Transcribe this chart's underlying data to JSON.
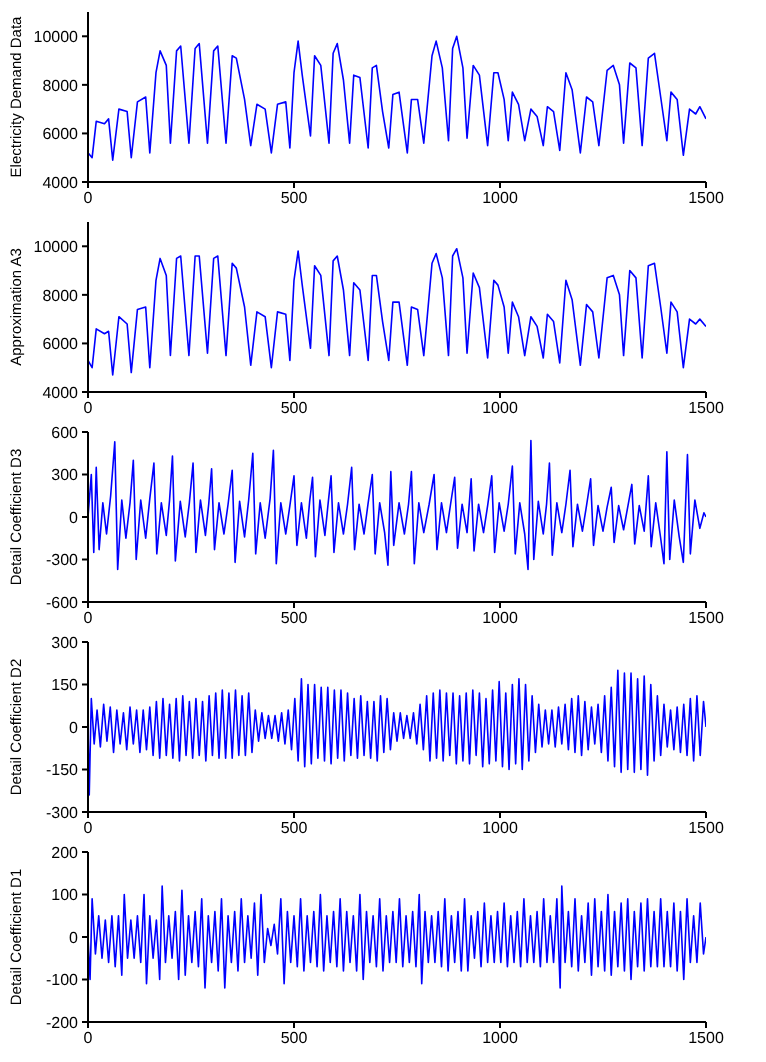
{
  "chart_data": [
    {
      "type": "line",
      "ylabel": "Electricity Demand Data",
      "color": "#0000ff",
      "xlim": [
        0,
        1500
      ],
      "xticks": [
        0,
        500,
        1000,
        1500
      ],
      "ylim": [
        4000,
        11000
      ],
      "yticks": [
        4000,
        6000,
        8000,
        10000
      ],
      "x": [
        0,
        10,
        20,
        40,
        50,
        60,
        75,
        95,
        105,
        120,
        140,
        150,
        165,
        175,
        190,
        200,
        215,
        225,
        245,
        260,
        270,
        290,
        305,
        315,
        335,
        350,
        360,
        380,
        395,
        410,
        430,
        445,
        460,
        480,
        490,
        500,
        510,
        520,
        540,
        550,
        565,
        585,
        595,
        605,
        620,
        635,
        645,
        660,
        680,
        690,
        700,
        715,
        730,
        740,
        755,
        775,
        785,
        800,
        815,
        835,
        845,
        860,
        875,
        885,
        895,
        910,
        920,
        935,
        950,
        970,
        985,
        995,
        1010,
        1020,
        1030,
        1045,
        1060,
        1075,
        1090,
        1105,
        1115,
        1130,
        1145,
        1160,
        1175,
        1195,
        1210,
        1225,
        1240,
        1260,
        1275,
        1290,
        1300,
        1315,
        1330,
        1345,
        1360,
        1375,
        1390,
        1405,
        1415,
        1430,
        1445,
        1460,
        1475,
        1485,
        1500
      ],
      "values": [
        5200,
        5000,
        6500,
        6400,
        6600,
        4900,
        7000,
        6900,
        5000,
        7300,
        7500,
        5200,
        8500,
        9400,
        8800,
        5600,
        9400,
        9600,
        5600,
        9500,
        9700,
        5600,
        9400,
        9600,
        5600,
        9200,
        9100,
        7400,
        5500,
        7200,
        7000,
        5200,
        7200,
        7300,
        5400,
        8500,
        9800,
        8400,
        5900,
        9200,
        8800,
        5600,
        9300,
        9700,
        8200,
        5600,
        8400,
        8300,
        5400,
        8700,
        8800,
        6900,
        5400,
        7600,
        7700,
        5200,
        7400,
        7400,
        5600,
        9200,
        9800,
        8700,
        5700,
        9500,
        10000,
        8700,
        5800,
        8800,
        8400,
        5500,
        8500,
        8500,
        7400,
        5700,
        7700,
        7200,
        5700,
        7000,
        6700,
        5500,
        7100,
        6900,
        5300,
        8500,
        7800,
        5200,
        7500,
        7300,
        5500,
        8600,
        8800,
        8000,
        5600,
        8900,
        8700,
        5500,
        9100,
        9300,
        7500,
        5700,
        7700,
        7400,
        5100,
        7000,
        6800,
        7100,
        6600
      ]
    },
    {
      "type": "line",
      "ylabel": "Approximation A3",
      "color": "#0000ff",
      "xlim": [
        0,
        1500
      ],
      "xticks": [
        0,
        500,
        1000,
        1500
      ],
      "ylim": [
        4000,
        11000
      ],
      "yticks": [
        4000,
        6000,
        8000,
        10000
      ],
      "x": [
        0,
        10,
        20,
        40,
        50,
        60,
        75,
        95,
        105,
        120,
        140,
        150,
        165,
        175,
        190,
        200,
        215,
        225,
        245,
        260,
        270,
        290,
        305,
        315,
        335,
        350,
        360,
        380,
        395,
        410,
        430,
        445,
        460,
        480,
        490,
        500,
        510,
        520,
        540,
        550,
        565,
        585,
        595,
        605,
        620,
        635,
        645,
        660,
        680,
        690,
        700,
        715,
        730,
        740,
        755,
        775,
        785,
        800,
        815,
        835,
        845,
        860,
        875,
        885,
        895,
        910,
        920,
        935,
        950,
        970,
        985,
        995,
        1010,
        1020,
        1030,
        1045,
        1060,
        1075,
        1090,
        1105,
        1115,
        1130,
        1145,
        1160,
        1175,
        1195,
        1210,
        1225,
        1240,
        1260,
        1275,
        1290,
        1300,
        1315,
        1330,
        1345,
        1360,
        1375,
        1390,
        1405,
        1415,
        1430,
        1445,
        1460,
        1475,
        1485,
        1500
      ],
      "values": [
        5300,
        5000,
        6600,
        6400,
        6500,
        4700,
        7100,
        6800,
        4800,
        7400,
        7500,
        5000,
        8600,
        9500,
        8800,
        5500,
        9500,
        9600,
        5500,
        9600,
        9600,
        5600,
        9500,
        9600,
        5500,
        9300,
        9100,
        7500,
        5100,
        7300,
        7100,
        5000,
        7300,
        7200,
        5300,
        8600,
        9800,
        8400,
        5800,
        9200,
        8800,
        5500,
        9400,
        9600,
        8200,
        5500,
        8500,
        8200,
        5300,
        8800,
        8800,
        6900,
        5300,
        7700,
        7700,
        5100,
        7500,
        7400,
        5500,
        9300,
        9700,
        8700,
        5500,
        9600,
        9900,
        8700,
        5600,
        8900,
        8300,
        5400,
        8600,
        8400,
        7500,
        5600,
        7700,
        7100,
        5500,
        7100,
        6700,
        5400,
        7200,
        6900,
        5200,
        8600,
        7800,
        5100,
        7600,
        7300,
        5400,
        8700,
        8800,
        8000,
        5500,
        9000,
        8700,
        5400,
        9200,
        9300,
        7500,
        5600,
        7700,
        7300,
        5000,
        7000,
        6800,
        7000,
        6700
      ]
    },
    {
      "type": "line",
      "ylabel": "Detail Coefficient D3",
      "color": "#0000ff",
      "xlim": [
        0,
        1500
      ],
      "xticks": [
        0,
        500,
        1000,
        1500
      ],
      "ylim": [
        -600,
        600
      ],
      "yticks": [
        -600,
        -300,
        0,
        300,
        600
      ],
      "x": [
        0,
        8,
        14,
        20,
        27,
        36,
        45,
        55,
        65,
        72,
        82,
        92,
        102,
        110,
        117,
        128,
        140,
        150,
        160,
        167,
        178,
        190,
        198,
        205,
        212,
        224,
        236,
        246,
        255,
        262,
        273,
        285,
        293,
        300,
        307,
        318,
        330,
        340,
        350,
        357,
        368,
        380,
        390,
        400,
        407,
        418,
        430,
        442,
        450,
        457,
        468,
        480,
        490,
        500,
        507,
        518,
        530,
        538,
        545,
        552,
        563,
        575,
        583,
        590,
        597,
        608,
        620,
        630,
        640,
        647,
        658,
        670,
        680,
        690,
        697,
        708,
        720,
        728,
        735,
        742,
        755,
        768,
        778,
        785,
        792,
        803,
        815,
        828,
        840,
        847,
        858,
        870,
        880,
        890,
        897,
        908,
        920,
        930,
        937,
        948,
        960,
        970,
        980,
        987,
        998,
        1010,
        1020,
        1030,
        1037,
        1048,
        1060,
        1068,
        1075,
        1082,
        1093,
        1105,
        1113,
        1120,
        1127,
        1138,
        1150,
        1160,
        1170,
        1177,
        1188,
        1200,
        1210,
        1220,
        1227,
        1238,
        1250,
        1260,
        1270,
        1277,
        1288,
        1300,
        1310,
        1320,
        1327,
        1338,
        1350,
        1360,
        1367,
        1378,
        1390,
        1398,
        1405,
        1412,
        1423,
        1435,
        1445,
        1455,
        1462,
        1473,
        1485,
        1495,
        1500
      ],
      "values": [
        0,
        300,
        -250,
        350,
        -230,
        100,
        -120,
        150,
        530,
        -370,
        120,
        -150,
        100,
        400,
        -300,
        120,
        -150,
        130,
        380,
        -260,
        100,
        -130,
        120,
        430,
        -310,
        110,
        -140,
        100,
        380,
        -250,
        120,
        -130,
        90,
        340,
        -230,
        100,
        -120,
        90,
        330,
        -320,
        110,
        -140,
        120,
        450,
        -260,
        100,
        -150,
        130,
        470,
        -330,
        100,
        -120,
        80,
        290,
        -200,
        100,
        -150,
        110,
        280,
        -280,
        120,
        -130,
        100,
        290,
        -250,
        100,
        -120,
        90,
        350,
        -230,
        90,
        -120,
        100,
        300,
        -260,
        100,
        -110,
        -340,
        320,
        -200,
        100,
        -120,
        90,
        320,
        -330,
        100,
        -110,
        90,
        300,
        -230,
        100,
        -110,
        90,
        280,
        -220,
        90,
        -110,
        270,
        -240,
        90,
        -110,
        80,
        290,
        -250,
        100,
        -100,
        90,
        360,
        -260,
        100,
        -120,
        -370,
        540,
        -300,
        110,
        -120,
        90,
        380,
        -270,
        100,
        -110,
        90,
        330,
        -210,
        90,
        -100,
        80,
        270,
        -200,
        80,
        -100,
        70,
        210,
        -180,
        80,
        -90,
        70,
        230,
        -190,
        80,
        -100,
        290,
        -210,
        100,
        -150,
        -330,
        460,
        -300,
        120,
        -140,
        -320,
        440,
        -260,
        120,
        -80,
        30,
        0
      ]
    },
    {
      "type": "line",
      "ylabel": "Detail Coefficient D2",
      "color": "#0000ff",
      "xlim": [
        0,
        1500
      ],
      "xticks": [
        0,
        500,
        1000,
        1500
      ],
      "ylim": [
        -300,
        300
      ],
      "yticks": [
        -300,
        -150,
        0,
        150,
        300
      ],
      "x": [
        0,
        3,
        8,
        15,
        22,
        30,
        38,
        46,
        54,
        62,
        70,
        78,
        86,
        94,
        102,
        110,
        118,
        126,
        134,
        142,
        150,
        158,
        166,
        174,
        182,
        190,
        198,
        206,
        214,
        222,
        230,
        238,
        246,
        254,
        262,
        270,
        278,
        286,
        294,
        302,
        310,
        318,
        326,
        334,
        342,
        350,
        358,
        366,
        374,
        382,
        390,
        398,
        406,
        414,
        422,
        430,
        438,
        446,
        454,
        462,
        470,
        478,
        486,
        494,
        502,
        510,
        518,
        526,
        534,
        542,
        550,
        558,
        566,
        574,
        582,
        590,
        598,
        606,
        614,
        622,
        630,
        638,
        646,
        654,
        662,
        670,
        678,
        686,
        694,
        702,
        710,
        718,
        726,
        734,
        742,
        750,
        758,
        766,
        774,
        782,
        790,
        798,
        806,
        814,
        822,
        830,
        838,
        846,
        854,
        862,
        870,
        878,
        886,
        894,
        902,
        910,
        918,
        926,
        934,
        942,
        950,
        958,
        966,
        974,
        982,
        990,
        998,
        1006,
        1014,
        1022,
        1030,
        1038,
        1046,
        1054,
        1062,
        1070,
        1078,
        1086,
        1094,
        1102,
        1110,
        1118,
        1126,
        1134,
        1142,
        1150,
        1158,
        1166,
        1174,
        1182,
        1190,
        1198,
        1206,
        1214,
        1222,
        1230,
        1238,
        1246,
        1254,
        1262,
        1270,
        1278,
        1286,
        1294,
        1302,
        1310,
        1318,
        1326,
        1334,
        1342,
        1350,
        1358,
        1366,
        1374,
        1382,
        1390,
        1398,
        1406,
        1414,
        1422,
        1430,
        1438,
        1446,
        1454,
        1462,
        1470,
        1478,
        1486,
        1494,
        1500
      ],
      "values": [
        0,
        -240,
        100,
        -60,
        60,
        -70,
        80,
        -50,
        70,
        -90,
        60,
        -60,
        50,
        -80,
        70,
        -60,
        60,
        -90,
        60,
        -80,
        70,
        -100,
        90,
        -110,
        100,
        -100,
        80,
        -110,
        100,
        -120,
        110,
        -100,
        90,
        -110,
        100,
        -100,
        90,
        -120,
        110,
        -100,
        120,
        -110,
        130,
        -110,
        120,
        -110,
        130,
        -100,
        110,
        -100,
        120,
        -90,
        60,
        -50,
        50,
        -40,
        40,
        -40,
        40,
        -50,
        50,
        -60,
        60,
        -80,
        100,
        -120,
        170,
        -140,
        150,
        -130,
        150,
        -110,
        140,
        -120,
        140,
        -130,
        130,
        -110,
        130,
        -120,
        120,
        -100,
        100,
        -110,
        110,
        -100,
        90,
        -110,
        90,
        -120,
        110,
        -90,
        100,
        -80,
        50,
        -50,
        50,
        -40,
        40,
        -40,
        50,
        -60,
        80,
        -80,
        110,
        -120,
        120,
        -110,
        130,
        -120,
        120,
        -100,
        120,
        -130,
        110,
        -120,
        120,
        -130,
        130,
        -100,
        120,
        -140,
        100,
        -130,
        130,
        -120,
        160,
        -140,
        120,
        -150,
        150,
        -130,
        170,
        -150,
        150,
        -120,
        110,
        -90,
        80,
        -70,
        60,
        -60,
        60,
        -70,
        70,
        -60,
        80,
        -80,
        100,
        -90,
        110,
        -100,
        90,
        -80,
        70,
        -60,
        80,
        -90,
        110,
        -120,
        140,
        -140,
        200,
        -160,
        190,
        -150,
        190,
        -160,
        170,
        -150,
        180,
        -170,
        150,
        -120,
        110,
        -100,
        80,
        -70,
        60,
        -80,
        70,
        -90,
        80,
        -100,
        100,
        -120,
        110,
        -100,
        90,
        0
      ]
    },
    {
      "type": "line",
      "ylabel": "Detail Coefficient D1",
      "color": "#0000ff",
      "xlim": [
        0,
        1500
      ],
      "xticks": [
        0,
        500,
        1000,
        1500
      ],
      "ylim": [
        -200,
        200
      ],
      "yticks": [
        -200,
        -100,
        0,
        100,
        200
      ],
      "x": [
        0,
        5,
        10,
        18,
        26,
        34,
        42,
        50,
        58,
        66,
        74,
        82,
        88,
        96,
        104,
        112,
        120,
        128,
        136,
        142,
        150,
        158,
        166,
        174,
        180,
        188,
        196,
        204,
        212,
        220,
        228,
        236,
        244,
        252,
        260,
        268,
        276,
        284,
        292,
        300,
        308,
        316,
        324,
        332,
        340,
        348,
        356,
        364,
        372,
        380,
        388,
        396,
        404,
        412,
        420,
        428,
        436,
        444,
        452,
        460,
        468,
        476,
        484,
        492,
        500,
        508,
        516,
        524,
        532,
        540,
        548,
        556,
        564,
        572,
        580,
        588,
        596,
        604,
        612,
        620,
        628,
        636,
        644,
        652,
        660,
        668,
        676,
        684,
        692,
        700,
        708,
        716,
        724,
        732,
        740,
        748,
        756,
        764,
        772,
        780,
        788,
        796,
        804,
        810,
        818,
        826,
        834,
        842,
        850,
        858,
        866,
        874,
        882,
        890,
        898,
        906,
        914,
        922,
        930,
        938,
        946,
        954,
        962,
        970,
        978,
        986,
        994,
        1002,
        1010,
        1018,
        1026,
        1034,
        1042,
        1050,
        1058,
        1066,
        1074,
        1082,
        1090,
        1098,
        1106,
        1114,
        1122,
        1130,
        1138,
        1146,
        1150,
        1158,
        1166,
        1174,
        1182,
        1190,
        1198,
        1206,
        1214,
        1222,
        1230,
        1238,
        1246,
        1254,
        1262,
        1270,
        1278,
        1286,
        1294,
        1302,
        1310,
        1318,
        1326,
        1334,
        1342,
        1350,
        1358,
        1366,
        1374,
        1382,
        1390,
        1398,
        1406,
        1414,
        1422,
        1430,
        1438,
        1446,
        1454,
        1462,
        1470,
        1478,
        1486,
        1494,
        1500
      ],
      "values": [
        0,
        -100,
        90,
        -40,
        50,
        -50,
        40,
        -60,
        50,
        -70,
        50,
        -90,
        100,
        -50,
        40,
        -50,
        50,
        -60,
        100,
        -110,
        50,
        -50,
        40,
        -100,
        120,
        -60,
        50,
        -50,
        60,
        -100,
        110,
        -90,
        50,
        -60,
        60,
        -70,
        90,
        -120,
        50,
        -60,
        60,
        -80,
        90,
        -120,
        50,
        -60,
        60,
        -80,
        90,
        -60,
        50,
        -50,
        80,
        -90,
        100,
        -60,
        20,
        -20,
        30,
        -40,
        90,
        -110,
        60,
        -60,
        50,
        -70,
        90,
        -80,
        50,
        -60,
        60,
        -70,
        100,
        -80,
        50,
        -60,
        60,
        -70,
        90,
        -80,
        60,
        -60,
        50,
        -80,
        100,
        -100,
        60,
        -60,
        50,
        -70,
        90,
        -80,
        50,
        -60,
        60,
        -60,
        90,
        -70,
        50,
        -60,
        60,
        -70,
        100,
        -110,
        60,
        -60,
        50,
        -60,
        60,
        -70,
        90,
        -80,
        50,
        -60,
        60,
        -80,
        90,
        -80,
        50,
        -50,
        60,
        -70,
        80,
        -60,
        50,
        -60,
        60,
        -60,
        80,
        -70,
        50,
        -60,
        60,
        -70,
        90,
        -60,
        50,
        -60,
        60,
        -70,
        90,
        -60,
        50,
        -60,
        90,
        -120,
        120,
        -60,
        60,
        -70,
        90,
        -80,
        50,
        -60,
        80,
        -90,
        90,
        -70,
        60,
        -80,
        100,
        -90,
        60,
        -70,
        80,
        -80,
        90,
        -100,
        60,
        -70,
        80,
        -80,
        90,
        -70,
        60,
        -70,
        90,
        -70,
        60,
        -70,
        80,
        -80,
        60,
        -100,
        90,
        -60,
        50,
        -60,
        80,
        -40,
        0
      ]
    }
  ]
}
